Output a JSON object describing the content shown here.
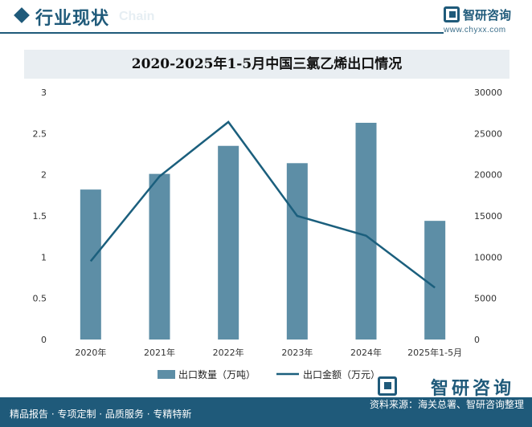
{
  "header": {
    "title": "行业现状",
    "ghost_text": "Chain",
    "brand_name": "智研咨询",
    "brand_url": "www.chyxx.com"
  },
  "chart_data": {
    "type": "bar",
    "title": "2020-2025年1-5月中国三氯乙烯出口情况",
    "categories": [
      "2020年",
      "2021年",
      "2022年",
      "2023年",
      "2024年",
      "2025年1-5月"
    ],
    "series": [
      {
        "name": "出口数量（万吨）",
        "type": "bar",
        "axis": "left",
        "color": "#5d8ea6",
        "values": [
          1.82,
          2.01,
          2.35,
          2.14,
          2.63,
          1.44
        ]
      },
      {
        "name": "出口金额（万元）",
        "type": "line",
        "axis": "right",
        "color": "#1b5f7d",
        "values": [
          9500,
          19800,
          26400,
          15000,
          12600,
          6300
        ]
      }
    ],
    "y_left": {
      "min": 0,
      "max": 3,
      "ticks": [
        "0",
        "0.5",
        "1",
        "1.5",
        "2",
        "2.5",
        "3"
      ]
    },
    "y_right": {
      "min": 0,
      "max": 30000,
      "ticks": [
        "0",
        "5000",
        "10000",
        "15000",
        "20000",
        "25000",
        "30000"
      ]
    },
    "grid": false,
    "legend_position": "bottom"
  },
  "footer": {
    "left": "精品报告 · 专项定制 · 品质服务 · 专精特新",
    "right": "资料来源：海关总署、智研咨询整理",
    "brand": "智研咨询"
  },
  "colors": {
    "primary": "#1f5a7a",
    "bar": "#5d8ea6",
    "line": "#1b5f7d"
  }
}
